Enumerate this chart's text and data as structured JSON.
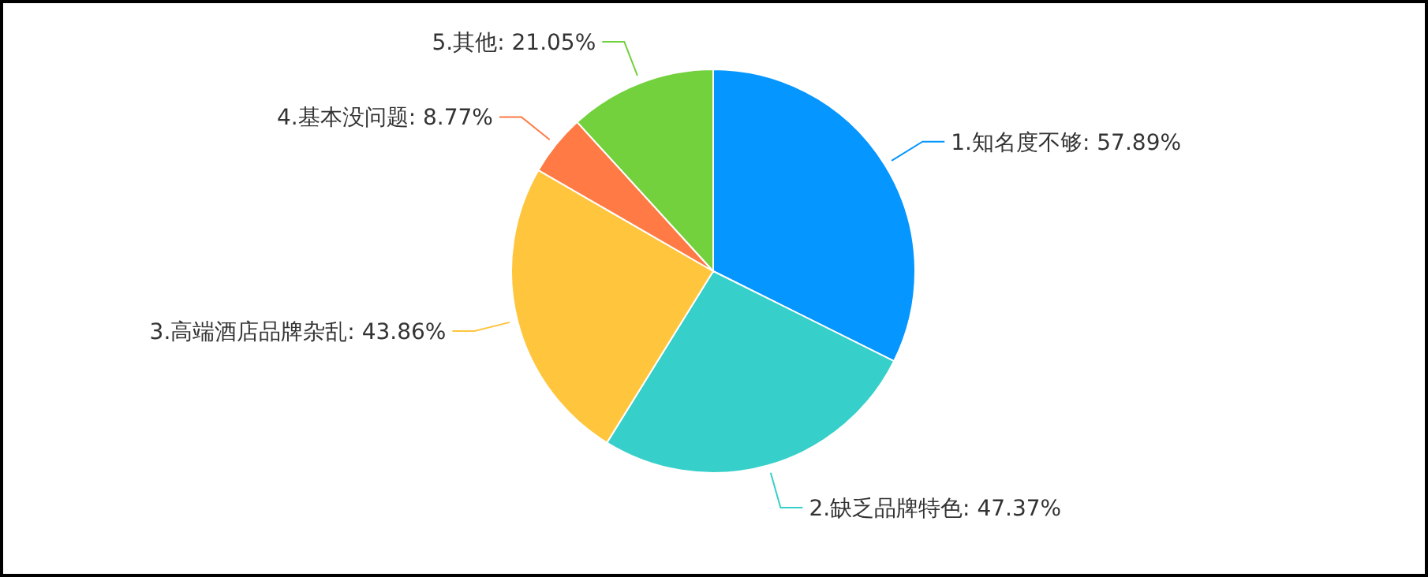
{
  "chart_data": {
    "type": "pie",
    "categories": [
      "1.知名度不够",
      "2.缺乏品牌特色",
      "3.高端酒店品牌杂乱",
      "4.基本没问题",
      "5.其他"
    ],
    "values": [
      57.89,
      47.37,
      43.86,
      8.77,
      21.05
    ],
    "value_labels": [
      "57.89%",
      "47.37%",
      "43.86%",
      "8.77%",
      "21.05%"
    ],
    "colors": [
      "#0596ff",
      "#36cfc9",
      "#ffc53d",
      "#ff7a45",
      "#73d13d"
    ]
  }
}
